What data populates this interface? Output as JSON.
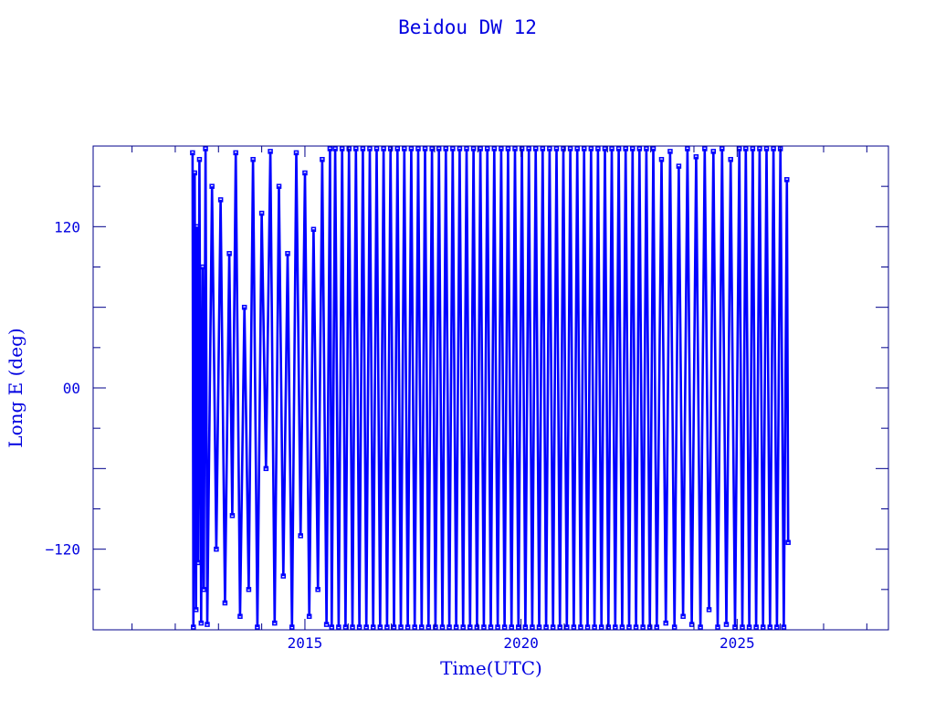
{
  "chart_data": {
    "type": "line",
    "title": "Beidou DW 12",
    "xlabel": "Time(UTC)",
    "ylabel": "Long E (deg)",
    "xlim": [
      2010.1,
      2028.5
    ],
    "ylim": [
      -180,
      180
    ],
    "x_ticks": [
      2015,
      2020,
      2025
    ],
    "x_tick_labels": [
      "2015",
      "2020",
      "2025"
    ],
    "y_ticks": [
      120,
      0,
      -120
    ],
    "y_tick_labels": [
      "120",
      "00",
      "-120"
    ],
    "x_minor_step": 1,
    "y_minor_step": 30,
    "y_major_step": 60,
    "grid": false,
    "markers": "square",
    "colors": {
      "series": "#0000ff",
      "axes": "#00008b",
      "text": "#0000e0"
    },
    "points": [
      [
        2012.4,
        175
      ],
      [
        2012.42,
        -178
      ],
      [
        2012.45,
        160
      ],
      [
        2012.48,
        -165
      ],
      [
        2012.5,
        120
      ],
      [
        2012.53,
        -130
      ],
      [
        2012.56,
        170
      ],
      [
        2012.6,
        -175
      ],
      [
        2012.63,
        90
      ],
      [
        2012.66,
        -150
      ],
      [
        2012.7,
        178
      ],
      [
        2012.74,
        -176
      ],
      [
        2012.85,
        150
      ],
      [
        2012.95,
        -120
      ],
      [
        2013.05,
        140
      ],
      [
        2013.15,
        -160
      ],
      [
        2013.25,
        100
      ],
      [
        2013.32,
        -95
      ],
      [
        2013.4,
        175
      ],
      [
        2013.5,
        -170
      ],
      [
        2013.6,
        60
      ],
      [
        2013.7,
        -150
      ],
      [
        2013.8,
        170
      ],
      [
        2013.9,
        -178
      ],
      [
        2014.0,
        130
      ],
      [
        2014.1,
        -60
      ],
      [
        2014.2,
        176
      ],
      [
        2014.3,
        -175
      ],
      [
        2014.4,
        150
      ],
      [
        2014.5,
        -140
      ],
      [
        2014.6,
        100
      ],
      [
        2014.7,
        -178
      ],
      [
        2014.8,
        175
      ],
      [
        2014.9,
        -110
      ],
      [
        2015.0,
        160
      ],
      [
        2015.1,
        -170
      ],
      [
        2015.2,
        118
      ],
      [
        2015.3,
        -150
      ],
      [
        2015.4,
        170
      ],
      [
        2015.5,
        -176
      ],
      [
        2015.58,
        178
      ],
      [
        2015.62,
        -178
      ],
      [
        2015.7,
        178
      ],
      [
        2015.78,
        -178
      ],
      [
        2015.86,
        178
      ],
      [
        2015.94,
        -178
      ],
      [
        2016.02,
        178
      ],
      [
        2016.1,
        -178
      ],
      [
        2016.18,
        178
      ],
      [
        2016.26,
        -178
      ],
      [
        2016.34,
        178
      ],
      [
        2016.42,
        -178
      ],
      [
        2016.5,
        178
      ],
      [
        2016.58,
        -178
      ],
      [
        2016.66,
        178
      ],
      [
        2016.74,
        -178
      ],
      [
        2016.82,
        178
      ],
      [
        2016.9,
        -178
      ],
      [
        2016.98,
        178
      ],
      [
        2017.06,
        -178
      ],
      [
        2017.14,
        178
      ],
      [
        2017.22,
        -178
      ],
      [
        2017.3,
        178
      ],
      [
        2017.38,
        -178
      ],
      [
        2017.46,
        178
      ],
      [
        2017.54,
        -178
      ],
      [
        2017.62,
        178
      ],
      [
        2017.7,
        -178
      ],
      [
        2017.78,
        178
      ],
      [
        2017.86,
        -178
      ],
      [
        2017.94,
        178
      ],
      [
        2018.02,
        -178
      ],
      [
        2018.1,
        178
      ],
      [
        2018.18,
        -178
      ],
      [
        2018.26,
        178
      ],
      [
        2018.34,
        -178
      ],
      [
        2018.42,
        178
      ],
      [
        2018.5,
        -178
      ],
      [
        2018.58,
        178
      ],
      [
        2018.66,
        -178
      ],
      [
        2018.74,
        178
      ],
      [
        2018.82,
        -178
      ],
      [
        2018.9,
        178
      ],
      [
        2018.98,
        -178
      ],
      [
        2019.06,
        178
      ],
      [
        2019.14,
        -178
      ],
      [
        2019.22,
        178
      ],
      [
        2019.3,
        -178
      ],
      [
        2019.38,
        178
      ],
      [
        2019.46,
        -178
      ],
      [
        2019.54,
        178
      ],
      [
        2019.62,
        -178
      ],
      [
        2019.7,
        178
      ],
      [
        2019.78,
        -178
      ],
      [
        2019.86,
        178
      ],
      [
        2019.94,
        -178
      ],
      [
        2020.02,
        178
      ],
      [
        2020.1,
        -178
      ],
      [
        2020.18,
        178
      ],
      [
        2020.26,
        -178
      ],
      [
        2020.34,
        178
      ],
      [
        2020.42,
        -178
      ],
      [
        2020.5,
        178
      ],
      [
        2020.58,
        -178
      ],
      [
        2020.66,
        178
      ],
      [
        2020.74,
        -178
      ],
      [
        2020.82,
        178
      ],
      [
        2020.9,
        -178
      ],
      [
        2020.98,
        178
      ],
      [
        2021.06,
        -178
      ],
      [
        2021.14,
        178
      ],
      [
        2021.22,
        -178
      ],
      [
        2021.3,
        178
      ],
      [
        2021.38,
        -178
      ],
      [
        2021.46,
        178
      ],
      [
        2021.54,
        -178
      ],
      [
        2021.62,
        178
      ],
      [
        2021.7,
        -178
      ],
      [
        2021.78,
        178
      ],
      [
        2021.86,
        -178
      ],
      [
        2021.94,
        178
      ],
      [
        2022.02,
        -178
      ],
      [
        2022.1,
        178
      ],
      [
        2022.18,
        -178
      ],
      [
        2022.26,
        178
      ],
      [
        2022.34,
        -178
      ],
      [
        2022.42,
        178
      ],
      [
        2022.5,
        -178
      ],
      [
        2022.58,
        178
      ],
      [
        2022.66,
        -178
      ],
      [
        2022.74,
        178
      ],
      [
        2022.82,
        -178
      ],
      [
        2022.9,
        178
      ],
      [
        2022.98,
        -178
      ],
      [
        2023.06,
        178
      ],
      [
        2023.14,
        -178
      ],
      [
        2023.25,
        170
      ],
      [
        2023.35,
        -175
      ],
      [
        2023.45,
        176
      ],
      [
        2023.55,
        -178
      ],
      [
        2023.65,
        165
      ],
      [
        2023.75,
        -170
      ],
      [
        2023.85,
        178
      ],
      [
        2023.95,
        -176
      ],
      [
        2024.05,
        172
      ],
      [
        2024.15,
        -178
      ],
      [
        2024.25,
        178
      ],
      [
        2024.35,
        -165
      ],
      [
        2024.45,
        176
      ],
      [
        2024.55,
        -178
      ],
      [
        2024.65,
        178
      ],
      [
        2024.75,
        -176
      ],
      [
        2024.85,
        170
      ],
      [
        2024.95,
        -178
      ],
      [
        2025.05,
        178
      ],
      [
        2025.12,
        -178
      ],
      [
        2025.2,
        178
      ],
      [
        2025.28,
        -178
      ],
      [
        2025.36,
        178
      ],
      [
        2025.44,
        -178
      ],
      [
        2025.52,
        178
      ],
      [
        2025.6,
        -178
      ],
      [
        2025.68,
        178
      ],
      [
        2025.76,
        -178
      ],
      [
        2025.84,
        178
      ],
      [
        2025.92,
        -178
      ],
      [
        2026.0,
        178
      ],
      [
        2026.08,
        -178
      ],
      [
        2026.15,
        155
      ],
      [
        2026.18,
        -115
      ]
    ]
  }
}
